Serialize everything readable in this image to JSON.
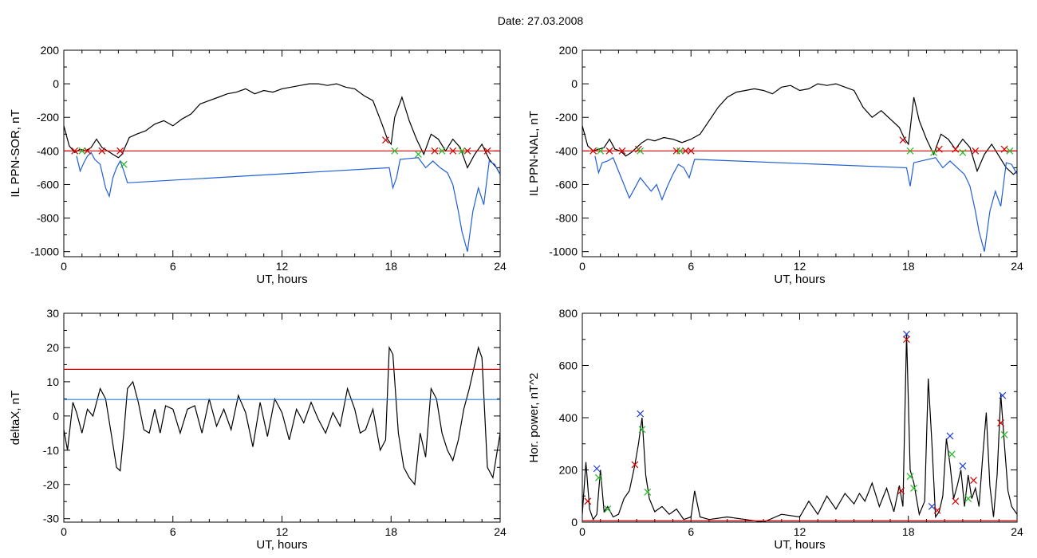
{
  "page": {
    "title": "Date:  27.03.2008"
  },
  "chart_data": [
    {
      "type": "line",
      "xlabel": "UT, hours",
      "ylabel": "IL PPN-SOR, nT",
      "xlim": [
        0,
        24
      ],
      "ylim": [
        -1030,
        200
      ],
      "xticks": [
        0,
        6,
        12,
        18,
        24
      ],
      "yticks": [
        -1000,
        -800,
        -600,
        -400,
        -200,
        0,
        200
      ],
      "grid": false,
      "series": [
        {
          "color": "#000000",
          "x": [
            0,
            0.3,
            0.6,
            0.9,
            1.2,
            1.5,
            1.8,
            2.1,
            2.4,
            2.7,
            3.0,
            3.2,
            3.4,
            3.6,
            4.0,
            4.5,
            5.0,
            5.5,
            6.0,
            6.5,
            7.0,
            7.5,
            8.0,
            8.5,
            9.0,
            9.5,
            10,
            10.5,
            11,
            11.5,
            12,
            12.5,
            13,
            13.5,
            14,
            14.5,
            15,
            15.5,
            16,
            16.5,
            17,
            17.5,
            17.8,
            18.0,
            18.2,
            18.6,
            19,
            19.4,
            19.8,
            20.2,
            20.6,
            21,
            21.4,
            21.8,
            22.2,
            22.6,
            23,
            23.4,
            23.8,
            24
          ],
          "y": [
            -250,
            -370,
            -410,
            -390,
            -400,
            -380,
            -330,
            -380,
            -400,
            -420,
            -440,
            -420,
            -370,
            -320,
            -300,
            -280,
            -240,
            -220,
            -250,
            -210,
            -180,
            -120,
            -100,
            -80,
            -60,
            -50,
            -30,
            -60,
            -40,
            -50,
            -30,
            -20,
            -10,
            0,
            0,
            -10,
            0,
            -20,
            -30,
            -70,
            -100,
            -240,
            -330,
            -360,
            -200,
            -80,
            -220,
            -330,
            -420,
            -300,
            -330,
            -400,
            -330,
            -380,
            -500,
            -420,
            -360,
            -450,
            -500,
            -540
          ]
        },
        {
          "color": "#1f5fd6",
          "x": [
            0.7,
            0.9,
            1.1,
            1.3,
            1.5,
            1.7,
            2.0,
            2.3,
            2.5,
            2.7,
            2.9,
            3.1,
            3.3,
            3.5,
            17.9,
            18.1,
            18.3,
            18.5,
            19.5,
            19.9,
            20.3,
            20.7,
            21.1,
            21.4,
            21.7,
            21.9,
            22.2,
            22.5,
            22.8,
            23.1,
            23.4,
            23.7,
            24.0
          ],
          "y": [
            -430,
            -520,
            -470,
            -430,
            -410,
            -450,
            -480,
            -620,
            -670,
            -560,
            -500,
            -460,
            -520,
            -590,
            -500,
            -620,
            -560,
            -450,
            -440,
            -500,
            -460,
            -500,
            -530,
            -600,
            -760,
            -880,
            -1000,
            -760,
            -620,
            -720,
            -460,
            -480,
            -540
          ]
        },
        {
          "color": "#e00000",
          "x": [
            0,
            24
          ],
          "y": [
            -400,
            -400
          ]
        }
      ],
      "markers": [
        {
          "color": "#d00000",
          "x": [
            0.6,
            1.3,
            2.1,
            3.1,
            17.7,
            20.4,
            21.4,
            22.2,
            23.3
          ],
          "y": [
            -400,
            -400,
            -400,
            -400,
            -335,
            -400,
            -400,
            -400,
            -400
          ]
        },
        {
          "color": "#22bb22",
          "x": [
            1.0,
            3.3,
            18.2,
            19.5,
            20.8,
            21.9
          ],
          "y": [
            -400,
            -480,
            -400,
            -420,
            -400,
            -400
          ]
        }
      ]
    },
    {
      "type": "line",
      "xlabel": "UT, hours",
      "ylabel": "IL PPN-NAL, nT",
      "xlim": [
        0,
        24
      ],
      "ylim": [
        -1030,
        200
      ],
      "xticks": [
        0,
        6,
        12,
        18,
        24
      ],
      "yticks": [
        -1000,
        -800,
        -600,
        -400,
        -200,
        0,
        200
      ],
      "grid": false,
      "series": [
        {
          "color": "#000000",
          "x": [
            0,
            0.3,
            0.6,
            0.9,
            1.2,
            1.5,
            1.8,
            2.1,
            2.4,
            2.7,
            3.0,
            3.3,
            3.6,
            4.0,
            4.5,
            5.0,
            5.5,
            6.0,
            6.5,
            7.0,
            7.5,
            8.0,
            8.5,
            9.0,
            9.5,
            10,
            10.5,
            11,
            11.5,
            12,
            12.5,
            13,
            13.5,
            14,
            14.5,
            15,
            15.5,
            16,
            16.5,
            17,
            17.5,
            17.8,
            18.0,
            18.3,
            18.6,
            19,
            19.4,
            19.8,
            20.2,
            20.6,
            21,
            21.4,
            21.8,
            22.2,
            22.6,
            23,
            23.4,
            23.8,
            24
          ],
          "y": [
            -250,
            -370,
            -400,
            -390,
            -380,
            -330,
            -390,
            -400,
            -430,
            -410,
            -380,
            -350,
            -330,
            -340,
            -320,
            -330,
            -350,
            -330,
            -300,
            -220,
            -140,
            -80,
            -50,
            -40,
            -30,
            -40,
            -60,
            -20,
            -10,
            -40,
            -30,
            0,
            -10,
            0,
            -20,
            -40,
            -140,
            -200,
            -160,
            -210,
            -260,
            -330,
            -360,
            -80,
            -220,
            -330,
            -420,
            -300,
            -330,
            -390,
            -330,
            -380,
            -520,
            -420,
            -360,
            -430,
            -500,
            -540,
            -520
          ]
        },
        {
          "color": "#1f5fd6",
          "x": [
            0.7,
            0.9,
            1.1,
            1.4,
            1.7,
            2.0,
            2.3,
            2.6,
            2.9,
            3.2,
            3.5,
            3.8,
            4.1,
            4.4,
            4.7,
            5.0,
            5.3,
            5.6,
            5.9,
            6.2,
            17.9,
            18.1,
            18.3,
            19.5,
            19.9,
            20.3,
            20.7,
            21.1,
            21.4,
            21.7,
            21.9,
            22.2,
            22.5,
            22.8,
            23.1,
            23.4,
            23.7,
            24.0
          ],
          "y": [
            -430,
            -530,
            -470,
            -460,
            -440,
            -520,
            -600,
            -680,
            -620,
            -560,
            -600,
            -640,
            -600,
            -690,
            -610,
            -540,
            -480,
            -500,
            -560,
            -450,
            -500,
            -610,
            -470,
            -440,
            -500,
            -460,
            -500,
            -540,
            -610,
            -760,
            -880,
            -1000,
            -760,
            -640,
            -730,
            -470,
            -480,
            -540
          ]
        },
        {
          "color": "#e00000",
          "x": [
            0,
            24
          ],
          "y": [
            -400,
            -400
          ]
        }
      ],
      "markers": [
        {
          "color": "#d00000",
          "x": [
            0.6,
            1.5,
            2.2,
            3.1,
            5.2,
            5.7,
            6.0,
            17.7,
            19.7,
            20.6,
            21.7,
            23.3
          ],
          "y": [
            -400,
            -400,
            -400,
            -390,
            -400,
            -400,
            -400,
            -335,
            -390,
            -390,
            -400,
            -390
          ]
        },
        {
          "color": "#22bb22",
          "x": [
            1.0,
            3.2,
            5.4,
            18.1,
            19.4,
            21.0,
            23.6
          ],
          "y": [
            -400,
            -400,
            -400,
            -400,
            -410,
            -410,
            -400
          ]
        }
      ]
    },
    {
      "type": "line",
      "xlabel": "UT, hours",
      "ylabel": "deltaX, nT",
      "xlim": [
        0,
        24
      ],
      "ylim": [
        -31,
        30
      ],
      "xticks": [
        0,
        6,
        12,
        18,
        24
      ],
      "yticks": [
        -30,
        -20,
        -10,
        0,
        10,
        20,
        30
      ],
      "grid": false,
      "series": [
        {
          "color": "#000000",
          "x": [
            0,
            0.2,
            0.5,
            0.7,
            1.0,
            1.3,
            1.6,
            2.0,
            2.3,
            2.6,
            2.9,
            3.1,
            3.3,
            3.5,
            3.8,
            4.1,
            4.4,
            4.7,
            5.0,
            5.3,
            5.6,
            6.0,
            6.4,
            6.8,
            7.2,
            7.6,
            8.0,
            8.4,
            8.8,
            9.2,
            9.6,
            10.0,
            10.4,
            10.8,
            11.2,
            11.6,
            12.0,
            12.4,
            12.8,
            13.2,
            13.6,
            14.0,
            14.4,
            14.8,
            15.2,
            15.6,
            16.0,
            16.3,
            16.6,
            17.0,
            17.4,
            17.7,
            17.9,
            18.1,
            18.4,
            18.7,
            19.0,
            19.3,
            19.6,
            19.9,
            20.2,
            20.5,
            20.8,
            21.1,
            21.4,
            21.7,
            22.0,
            22.3,
            22.6,
            22.8,
            23.0,
            23.3,
            23.6,
            24.0
          ],
          "y": [
            -4,
            -10,
            4,
            1,
            -5,
            2,
            0,
            8,
            5,
            -5,
            -15,
            -16,
            -5,
            8,
            10,
            4,
            -4,
            -5,
            2,
            -5,
            3,
            2,
            -5,
            2,
            3,
            -5,
            5,
            -3,
            2,
            -4,
            6,
            1,
            -9,
            4,
            -6,
            5,
            1,
            -7,
            2,
            -2,
            4,
            -1,
            -5,
            1,
            -3,
            8,
            2,
            -5,
            -4,
            2,
            -10,
            -7,
            20,
            18,
            -5,
            -15,
            -18,
            -20,
            -5,
            -12,
            8,
            5,
            -5,
            -10,
            -13,
            -7,
            2,
            8,
            15,
            20,
            17,
            -15,
            -18,
            -5
          ]
        },
        {
          "color": "#e00000",
          "x": [
            0,
            24
          ],
          "y": [
            13.6,
            13.6
          ]
        },
        {
          "color": "#2a7fd0",
          "x": [
            0,
            24
          ],
          "y": [
            4.8,
            4.8
          ]
        }
      ],
      "markers": []
    },
    {
      "type": "line",
      "xlabel": "UT, hours",
      "ylabel": "Hor. power, nT^2",
      "xlim": [
        0,
        24
      ],
      "ylim": [
        0,
        800
      ],
      "xticks": [
        0,
        6,
        12,
        18,
        24
      ],
      "yticks": [
        0,
        200,
        400,
        600,
        800
      ],
      "grid": false,
      "series": [
        {
          "color": "#000000",
          "x": [
            0,
            0.2,
            0.4,
            0.6,
            0.8,
            1.0,
            1.2,
            1.4,
            1.7,
            2.0,
            2.3,
            2.6,
            2.9,
            3.1,
            3.3,
            3.5,
            3.7,
            4.0,
            4.4,
            4.8,
            5.2,
            5.6,
            6.0,
            6.2,
            6.5,
            7.0,
            8.0,
            9.0,
            10.0,
            11.0,
            12.0,
            12.5,
            13.0,
            13.5,
            14.0,
            14.5,
            15.0,
            15.3,
            15.6,
            16.0,
            16.4,
            16.8,
            17.2,
            17.5,
            17.7,
            17.9,
            18.1,
            18.3,
            18.6,
            18.9,
            19.1,
            19.3,
            19.5,
            19.7,
            19.9,
            20.1,
            20.3,
            20.5,
            20.7,
            20.9,
            21.1,
            21.3,
            21.5,
            21.7,
            21.9,
            22.1,
            22.3,
            22.5,
            22.7,
            22.9,
            23.1,
            23.3,
            23.5,
            23.7,
            24.0
          ],
          "y": [
            30,
            230,
            50,
            10,
            30,
            200,
            40,
            60,
            20,
            30,
            90,
            120,
            220,
            300,
            400,
            180,
            90,
            40,
            60,
            30,
            50,
            10,
            20,
            120,
            20,
            10,
            20,
            10,
            0,
            30,
            20,
            80,
            30,
            100,
            50,
            110,
            70,
            110,
            80,
            150,
            60,
            130,
            40,
            140,
            60,
            720,
            200,
            150,
            30,
            80,
            550,
            300,
            20,
            40,
            100,
            320,
            220,
            90,
            140,
            200,
            60,
            180,
            90,
            130,
            60,
            250,
            420,
            140,
            20,
            180,
            490,
            300,
            120,
            60,
            30
          ]
        },
        {
          "color": "#e00000",
          "x": [
            0,
            24
          ],
          "y": [
            5,
            5
          ]
        }
      ],
      "markers": [
        {
          "color": "#1f3fd6",
          "x": [
            0.8,
            3.2,
            17.9,
            19.3,
            20.3,
            21.0,
            23.2
          ],
          "y": [
            205,
            415,
            720,
            60,
            330,
            215,
            485
          ]
        },
        {
          "color": "#d00000",
          "x": [
            0.3,
            2.9,
            17.9,
            17.6,
            19.6,
            20.6,
            21.6,
            23.1
          ],
          "y": [
            80,
            220,
            700,
            120,
            45,
            80,
            160,
            380
          ]
        },
        {
          "color": "#22bb22",
          "x": [
            0.9,
            1.4,
            3.3,
            3.6,
            18.1,
            18.3,
            20.4,
            21.3,
            23.3
          ],
          "y": [
            170,
            50,
            355,
            115,
            175,
            130,
            260,
            90,
            335
          ]
        }
      ]
    }
  ]
}
